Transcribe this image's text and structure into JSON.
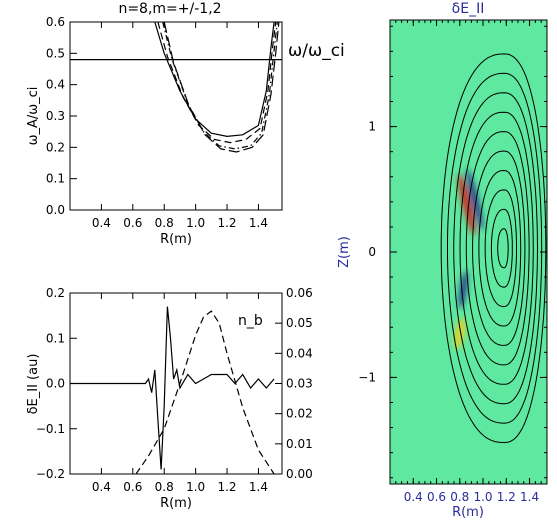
{
  "chart_data": [
    {
      "type": "line",
      "title": "n=8,m=+/-1,2",
      "xlabel": "R(m)",
      "ylabel": "ω_A/ω_ci",
      "annotation": "ω/ω_ci",
      "xlim": [
        0.2,
        1.55
      ],
      "ylim": [
        0.0,
        0.6
      ],
      "xticks": [
        "0.4",
        "0.6",
        "0.8",
        "1.0",
        "1.2",
        "1.4"
      ],
      "yticks": [
        "0.0",
        "0.1",
        "0.2",
        "0.3",
        "0.4",
        "0.5",
        "0.6"
      ],
      "hline": 0.48,
      "series": [
        {
          "style": "solid",
          "x": [
            0.74,
            0.8,
            0.9,
            1.0,
            1.1,
            1.2,
            1.3,
            1.4,
            1.45,
            1.48,
            1.5
          ],
          "y": [
            0.6,
            0.5,
            0.38,
            0.29,
            0.245,
            0.235,
            0.24,
            0.27,
            0.38,
            0.52,
            0.6
          ]
        },
        {
          "style": "dash",
          "x": [
            0.76,
            0.82,
            0.92,
            1.02,
            1.12,
            1.22,
            1.32,
            1.41,
            1.46,
            1.49,
            1.51
          ],
          "y": [
            0.6,
            0.49,
            0.36,
            0.27,
            0.225,
            0.215,
            0.225,
            0.26,
            0.38,
            0.52,
            0.6
          ]
        },
        {
          "style": "dashdot",
          "x": [
            0.79,
            0.85,
            0.95,
            1.05,
            1.15,
            1.25,
            1.35,
            1.42,
            1.47,
            1.5,
            1.52
          ],
          "y": [
            0.6,
            0.48,
            0.34,
            0.25,
            0.205,
            0.195,
            0.205,
            0.245,
            0.37,
            0.51,
            0.6
          ]
        },
        {
          "style": "longdash",
          "x": [
            0.8,
            0.86,
            0.96,
            1.06,
            1.16,
            1.26,
            1.36,
            1.43,
            1.48,
            1.51,
            1.53
          ],
          "y": [
            0.6,
            0.47,
            0.33,
            0.24,
            0.195,
            0.185,
            0.2,
            0.24,
            0.37,
            0.5,
            0.6
          ]
        }
      ]
    },
    {
      "type": "line",
      "xlabel": "R(m)",
      "ylabel": "δE_II (au)",
      "annotation": "n_b",
      "xlim": [
        0.2,
        1.55
      ],
      "ylim": [
        -0.2,
        0.2
      ],
      "y2lim": [
        0.0,
        0.06
      ],
      "xticks": [
        "0.4",
        "0.6",
        "0.8",
        "1.0",
        "1.2",
        "1.4"
      ],
      "yticks": [
        "−0.2",
        "−0.1",
        "0.0",
        "0.1",
        "0.2"
      ],
      "y2ticks": [
        "0.00",
        "0.01",
        "0.02",
        "0.03",
        "0.04",
        "0.05",
        "0.06"
      ],
      "series": [
        {
          "axis": "left",
          "style": "solid",
          "x": [
            0.2,
            0.4,
            0.6,
            0.68,
            0.7,
            0.72,
            0.74,
            0.76,
            0.78,
            0.8,
            0.82,
            0.84,
            0.86,
            0.88,
            0.9,
            0.95,
            1.0,
            1.05,
            1.1,
            1.15,
            1.2,
            1.25,
            1.3,
            1.35,
            1.4,
            1.45,
            1.5
          ],
          "y": [
            0.0,
            0.0,
            0.0,
            0.0,
            0.01,
            -0.02,
            0.03,
            -0.08,
            -0.19,
            -0.05,
            0.17,
            0.1,
            0.01,
            0.03,
            -0.01,
            0.02,
            0.0,
            0.01,
            0.02,
            0.02,
            0.02,
            0.0,
            0.02,
            -0.01,
            0.01,
            -0.01,
            0.01
          ]
        },
        {
          "axis": "right",
          "style": "dash",
          "x": [
            0.62,
            0.7,
            0.8,
            0.9,
            1.0,
            1.05,
            1.1,
            1.15,
            1.2,
            1.3,
            1.4,
            1.5
          ],
          "y": [
            0.0,
            0.006,
            0.015,
            0.03,
            0.046,
            0.052,
            0.054,
            0.05,
            0.04,
            0.022,
            0.008,
            0.0
          ]
        }
      ]
    },
    {
      "type": "heatmap",
      "title": "δE_II",
      "xlabel": "R(m)",
      "ylabel": "Z(m)",
      "xlim": [
        0.2,
        1.55
      ],
      "ylim": [
        -1.85,
        1.85
      ],
      "xticks": [
        "0.4",
        "0.6",
        "0.8",
        "1.0",
        "1.2",
        "1.4"
      ],
      "yticks": [
        "−1",
        "0",
        "1"
      ],
      "background_color": "#5ee8a0",
      "flux_surfaces": {
        "center_R": 1.18,
        "center_Z": 0.03,
        "count": 10,
        "outer_rmin": 0.54,
        "outer_rmax": 0.36,
        "outer_height": 1.55
      },
      "mode_structure": [
        {
          "sign": "positive",
          "color": "#d81a0e",
          "R": 0.86,
          "Z": 0.38,
          "len": 0.5,
          "width": 0.035,
          "tilt": -0.25
        },
        {
          "sign": "negative",
          "color": "#1f2f8c",
          "R": 0.93,
          "Z": 0.42,
          "len": 0.5,
          "width": 0.03,
          "tilt": -0.25
        },
        {
          "sign": "negative",
          "color": "#1f2f8c",
          "R": 0.83,
          "Z": -0.3,
          "len": 0.3,
          "width": 0.03,
          "tilt": 0.15
        },
        {
          "sign": "positive",
          "color": "#f0d21c",
          "R": 0.8,
          "Z": -0.65,
          "len": 0.25,
          "width": 0.04,
          "tilt": 0.2
        }
      ]
    }
  ]
}
